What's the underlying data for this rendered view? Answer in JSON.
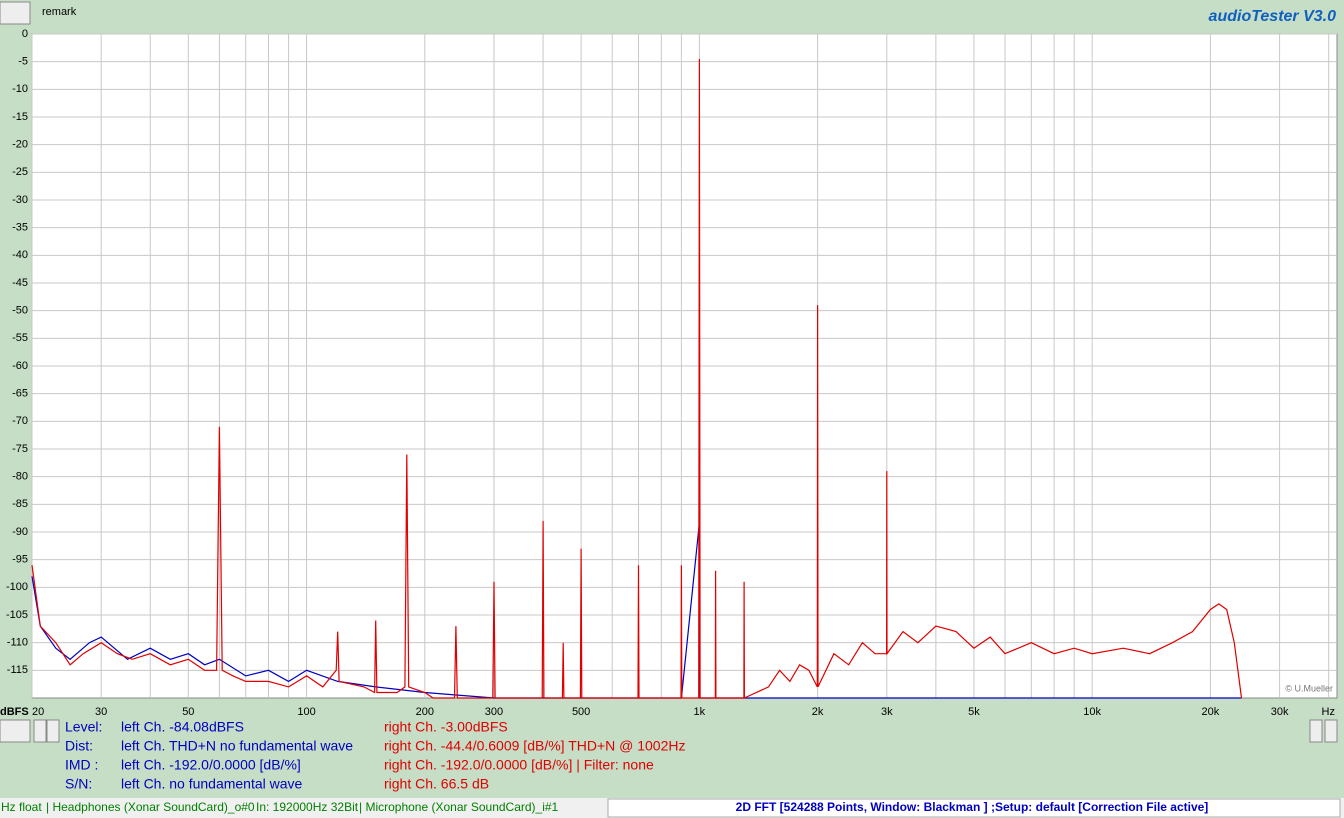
{
  "header": {
    "remark": "remark",
    "app_title": "audioTester  V3.0"
  },
  "chart_data": {
    "type": "line",
    "xscale": "log",
    "grid": true,
    "ylabel": "dBFS",
    "xlabel": "Hz",
    "credit": "© U.Mueller",
    "xlim": [
      20,
      42000
    ],
    "ylim": [
      -120,
      0
    ],
    "xticks": [
      20,
      30,
      50,
      100,
      200,
      300,
      500,
      {
        "value": 1000,
        "label": "1k"
      },
      {
        "value": 2000,
        "label": "2k"
      },
      {
        "value": 3000,
        "label": "3k"
      },
      {
        "value": 5000,
        "label": "5k"
      },
      {
        "value": 10000,
        "label": "10k"
      },
      {
        "value": 20000,
        "label": "20k"
      },
      {
        "value": 30000,
        "label": "30k"
      }
    ],
    "xgrid_minor": [
      40,
      60,
      70,
      80,
      90,
      400,
      600,
      700,
      800,
      900,
      4000,
      6000,
      7000,
      8000,
      9000,
      40000
    ],
    "yticks": [
      0,
      -5,
      -10,
      -15,
      -20,
      -25,
      -30,
      -35,
      -40,
      -45,
      -50,
      -55,
      -60,
      -65,
      -70,
      -75,
      -80,
      -85,
      -90,
      -95,
      -100,
      -105,
      -110,
      -115
    ],
    "series": [
      {
        "color": "#e00000",
        "x": [
          20,
          21,
          23,
          25,
          27,
          30,
          33,
          36,
          40,
          45,
          50,
          55,
          59,
          60,
          61,
          65,
          70,
          80,
          90,
          100,
          110,
          119,
          120,
          121,
          140,
          149,
          150,
          151,
          170,
          178,
          180,
          182,
          200,
          210,
          238,
          240,
          242,
          270,
          298,
          300,
          302,
          350,
          398,
          400,
          402,
          448,
          450,
          452,
          498,
          500,
          502,
          600,
          698,
          700,
          702,
          800,
          898,
          900,
          902,
          996,
          1000,
          1004,
          1098,
          1100,
          1102,
          1200,
          1298,
          1300,
          1302,
          1500,
          1600,
          1700,
          1800,
          1900,
          1996,
          2000,
          2004,
          2200,
          2400,
          2600,
          2800,
          2996,
          3000,
          3004,
          3300,
          3600,
          4000,
          4500,
          5000,
          5500,
          6000,
          7000,
          8000,
          9000,
          10000,
          12000,
          14000,
          16000,
          18000,
          20000,
          21000,
          22000,
          23000,
          24000
        ],
        "values": [
          -96,
          -107,
          -110,
          -114,
          -112,
          -110,
          -112,
          -113,
          -112,
          -114,
          -113,
          -115,
          -115,
          -71,
          -115,
          -116,
          -117,
          -117,
          -118,
          -116,
          -118,
          -115,
          -108,
          -117,
          -118,
          -119,
          -106,
          -119,
          -119,
          -118,
          -76,
          -118,
          -119,
          -120,
          -120,
          -107,
          -120,
          -120,
          -120,
          -99,
          -120,
          -120,
          -120,
          -88,
          -120,
          -120,
          -110,
          -120,
          -120,
          -93,
          -120,
          -120,
          -120,
          -96,
          -120,
          -120,
          -120,
          -96,
          -120,
          -120,
          -4.5,
          -120,
          -120,
          -97,
          -120,
          -120,
          -120,
          -99,
          -120,
          -118,
          -115,
          -117,
          -114,
          -115,
          -118,
          -49,
          -118,
          -112,
          -114,
          -110,
          -112,
          -112,
          -79,
          -112,
          -108,
          -110,
          -107,
          -108,
          -111,
          -109,
          -112,
          -110,
          -112,
          -111,
          -112,
          -111,
          -112,
          -110,
          -108,
          -104,
          -103,
          -104,
          -110,
          -120
        ]
      },
      {
        "color": "#0000c0",
        "x": [
          20,
          21,
          23,
          25,
          28,
          30,
          35,
          40,
          45,
          50,
          55,
          60,
          70,
          80,
          90,
          100,
          120,
          150,
          200,
          300,
          900,
          998,
          1002,
          5000,
          24000
        ],
        "values": [
          -98,
          -107,
          -111,
          -113,
          -110,
          -109,
          -113,
          -111,
          -113,
          -112,
          -114,
          -113,
          -116,
          -115,
          -117,
          -115,
          -117,
          -118,
          -119,
          -120,
          -120,
          -89,
          -120,
          -120,
          -120
        ]
      }
    ]
  },
  "readout": {
    "rows": [
      {
        "label": "Level:",
        "left": "left Ch. -84.08dBFS",
        "right": "right Ch. -3.00dBFS"
      },
      {
        "label": "Dist:",
        "left": "left Ch. THD+N  no fundamental wave",
        "right": "right Ch. -44.4/0.6009 [dB/%] THD+N  @ 1002Hz"
      },
      {
        "label": "IMD  :",
        "left": "left Ch. -192.0/0.0000 [dB/%]",
        "right": "right Ch. -192.0/0.0000 [dB/%] |   Filter: none"
      },
      {
        "label": "S/N:",
        "left": "left Ch.  no fundamental wave",
        "right": "right Ch. 66.5 dB"
      }
    ]
  },
  "status": {
    "parts": [
      "Hz float",
      "| Headphones (Xonar SoundCard)_o#0",
      "In: 192000Hz 32Bit",
      "| Microphone (Xonar SoundCard)_i#1"
    ],
    "fft": "2D FFT [524288 Points, Window: Blackman ] ;Setup:  default  [Correction File active]"
  }
}
